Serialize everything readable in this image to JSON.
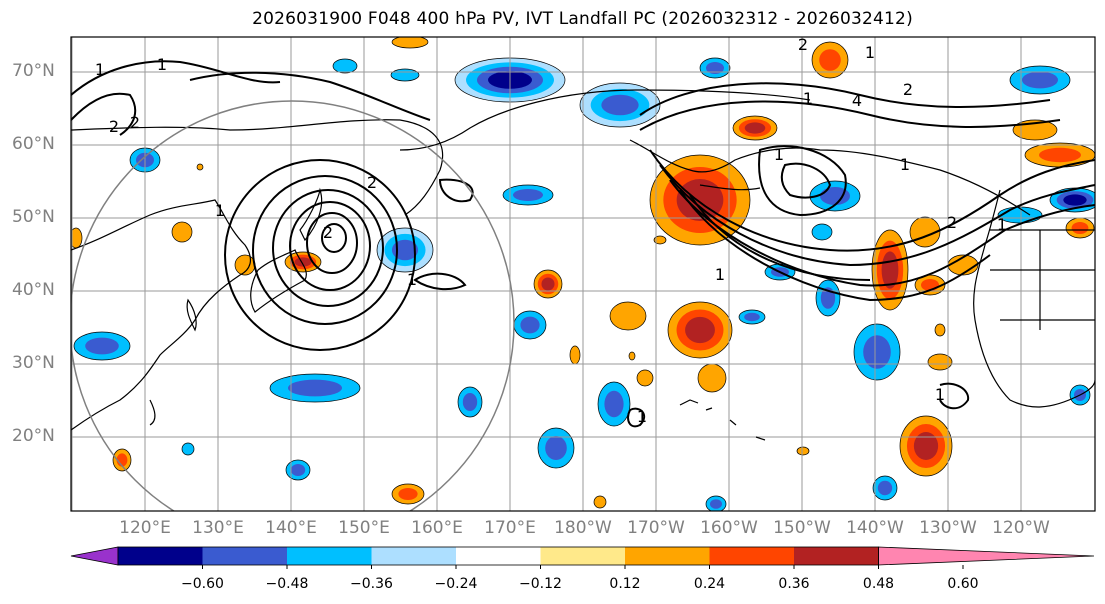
{
  "title": "2026031900 F048 400 hPa PV, IVT Landfall PC (2026032312 - 2026032412)",
  "lat_labels": [
    "70°N",
    "60°N",
    "50°N",
    "40°N",
    "30°N",
    "20°N"
  ],
  "lon_labels": [
    "120°E",
    "130°E",
    "140°E",
    "150°E",
    "160°E",
    "170°E",
    "180°W",
    "170°W",
    "160°W",
    "150°W",
    "140°W",
    "130°W",
    "120°W"
  ],
  "colorbar": {
    "ticks": [
      "−0.60",
      "−0.48",
      "−0.36",
      "−0.24",
      "−0.12",
      "0.12",
      "0.24",
      "0.36",
      "0.48",
      "0.60"
    ],
    "colors": [
      "#9932CC",
      "#00008B",
      "#3A5BD0",
      "#00BFFF",
      "#ADDFFF",
      "#FFFFFF",
      "#FFE98A",
      "#FFA500",
      "#FF4500",
      "#B22222",
      "#FF85B0"
    ]
  },
  "contour_labels": [
    "1",
    "1",
    "2",
    "2",
    "1",
    "2",
    "2",
    "1",
    "1",
    "2",
    "4",
    "1",
    "2",
    "1",
    "1",
    "1",
    "1",
    "1",
    "1",
    "2"
  ],
  "colors": {
    "grid": "#9a9a9a",
    "coast": "#000000",
    "contour": "#000000",
    "circle": "#808080"
  }
}
